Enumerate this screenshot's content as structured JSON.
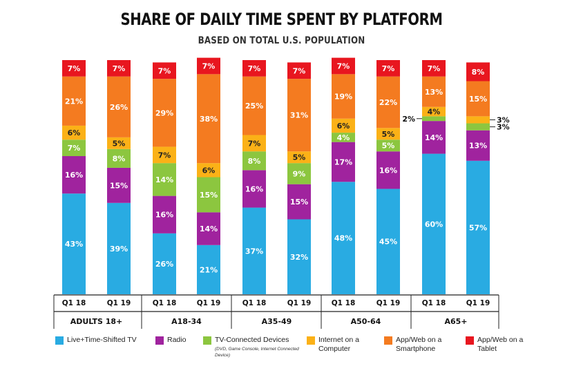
{
  "title": "SHARE OF DAILY TIME SPENT BY PLATFORM",
  "subtitle": "BASED ON TOTAL U.S. POPULATION",
  "chart_data": {
    "type": "bar",
    "stacked": true,
    "categories": [
      "Q1 18",
      "Q1 19",
      "Q1 18",
      "Q1 19",
      "Q1 18",
      "Q1 19",
      "Q1 18",
      "Q1 19",
      "Q1 18",
      "Q1 19"
    ],
    "groups": [
      "ADULTS 18+",
      "A18-34",
      "A35-49",
      "A50-64",
      "A65+"
    ],
    "series": [
      {
        "name": "Live+Time-Shifted TV",
        "color": "#29abe2",
        "values": [
          43,
          39,
          26,
          21,
          37,
          32,
          48,
          45,
          60,
          57
        ]
      },
      {
        "name": "Radio",
        "color": "#a0239e",
        "values": [
          16,
          15,
          16,
          14,
          16,
          15,
          17,
          16,
          14,
          13
        ]
      },
      {
        "name": "TV-Connected Devices",
        "color": "#8cc63f",
        "values": [
          7,
          8,
          14,
          15,
          8,
          9,
          4,
          5,
          2,
          3
        ]
      },
      {
        "name": "Internet on a Computer",
        "color": "#fbb117",
        "values": [
          6,
          5,
          7,
          6,
          7,
          5,
          6,
          5,
          4,
          3
        ]
      },
      {
        "name": "App/Web on a Smartphone",
        "color": "#f47b20",
        "values": [
          21,
          26,
          29,
          38,
          25,
          31,
          19,
          22,
          13,
          15
        ]
      },
      {
        "name": "App/Web on a Tablet",
        "color": "#e8161f",
        "values": [
          7,
          7,
          7,
          7,
          7,
          7,
          7,
          7,
          7,
          8
        ]
      }
    ],
    "ylim": [
      0,
      100
    ],
    "legend_position": "bottom"
  },
  "legend": [
    {
      "label": "Live+Time-Shifted TV",
      "color": "#29abe2"
    },
    {
      "label": "Radio",
      "color": "#a0239e"
    },
    {
      "label": "TV-Connected Devices",
      "color": "#8cc63f",
      "note": "(DVD, Game Console, Internet Connected Device)"
    },
    {
      "label": "Internet on a Computer",
      "color": "#fbb117"
    },
    {
      "label": "App/Web on a Smartphone",
      "color": "#f47b20"
    },
    {
      "label": "App/Web on a Tablet",
      "color": "#e8161f"
    }
  ]
}
